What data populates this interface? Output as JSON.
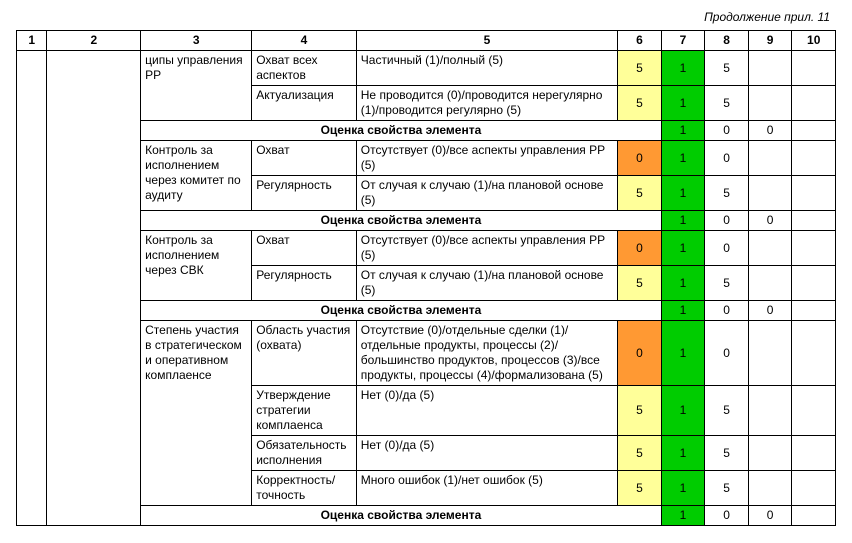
{
  "caption": "Продолжение прил. 11",
  "headers": [
    "1",
    "2",
    "3",
    "4",
    "5",
    "6",
    "7",
    "8",
    "9",
    "10"
  ],
  "summary_label": "Оценка свойства элемента",
  "colors": {
    "yellow": "#ffff99",
    "green": "#00cc00",
    "orange": "#ff9933"
  },
  "groups": [
    {
      "col3": "ципы управле­ния РР",
      "rows": [
        {
          "col4": "Охват всех аспектов",
          "col5": "Частичный (1)/полный (5)",
          "c6": "5",
          "c6bg": "yellow",
          "c7": "1",
          "c7bg": "green",
          "c8": "5",
          "c9": "",
          "c10": ""
        },
        {
          "col4": "Актуализация",
          "col5": "Не проводится (0)/проводится нерегу­лярно (1)/проводится регулярно (5)",
          "c6": "5",
          "c6bg": "yellow",
          "c7": "1",
          "c7bg": "green",
          "c8": "5",
          "c9": "",
          "c10": ""
        }
      ],
      "summary": {
        "c7": "1",
        "c7bg": "green",
        "c8": "0",
        "c9": "0",
        "c10": ""
      }
    },
    {
      "col3": "Контроль за исполнением через комитет по аудиту",
      "rows": [
        {
          "col4": "Охват",
          "col5": "Отсутствует (0)/все аспекты управле­ния РР (5)",
          "c6": "0",
          "c6bg": "orange",
          "c7": "1",
          "c7bg": "green",
          "c8": "0",
          "c9": "",
          "c10": ""
        },
        {
          "col4": "Регулярность",
          "col5": "От случая к случаю (1)/на плановой основе (5)",
          "c6": "5",
          "c6bg": "yellow",
          "c7": "1",
          "c7bg": "green",
          "c8": "5",
          "c9": "",
          "c10": ""
        }
      ],
      "summary": {
        "c7": "1",
        "c7bg": "green",
        "c8": "0",
        "c9": "0",
        "c10": ""
      }
    },
    {
      "col3": "Контроль за исполнением через СВК",
      "rows": [
        {
          "col4": "Охват",
          "col5": "Отсутствует (0)/все аспекты управле­ния РР (5)",
          "c6": "0",
          "c6bg": "orange",
          "c7": "1",
          "c7bg": "green",
          "c8": "0",
          "c9": "",
          "c10": ""
        },
        {
          "col4": "Регулярность",
          "col5": "От случая к случаю (1)/на плановой основе (5)",
          "c6": "5",
          "c6bg": "yellow",
          "c7": "1",
          "c7bg": "green",
          "c8": "5",
          "c9": "",
          "c10": ""
        }
      ],
      "summary": {
        "c7": "1",
        "c7bg": "green",
        "c8": "0",
        "c9": "0",
        "c10": ""
      }
    },
    {
      "col3": "Степень участия в стратегиче­ском и опера­тивном компла­енсе",
      "rows": [
        {
          "col4": "Область уча­стия (охвата)",
          "col5": "Отсутствие (0)/отдельные сделки (1)/отдельные продукты, процессы (2)/большинство продуктов, процессов (3)/все продукты, процессы (4)/фор­мализована (5)",
          "c6": "0",
          "c6bg": "orange",
          "c7": "1",
          "c7bg": "green",
          "c8": "0",
          "c9": "",
          "c10": ""
        },
        {
          "col4": "Утверждение стратегии комплаенса",
          "col5": "Нет (0)/да (5)",
          "c6": "5",
          "c6bg": "yellow",
          "c7": "1",
          "c7bg": "green",
          "c8": "5",
          "c9": "",
          "c10": ""
        },
        {
          "col4": "Обязательность исполнения",
          "col5": "Нет (0)/да (5)",
          "c6": "5",
          "c6bg": "yellow",
          "c7": "1",
          "c7bg": "green",
          "c8": "5",
          "c9": "",
          "c10": ""
        },
        {
          "col4": "Корректность/точность",
          "col5": "Много ошибок (1)/нет ошибок (5)",
          "c6": "5",
          "c6bg": "yellow",
          "c7": "1",
          "c7bg": "green",
          "c8": "5",
          "c9": "",
          "c10": ""
        }
      ],
      "summary": {
        "c7": "1",
        "c7bg": "green",
        "c8": "0",
        "c9": "0",
        "c10": ""
      }
    }
  ]
}
